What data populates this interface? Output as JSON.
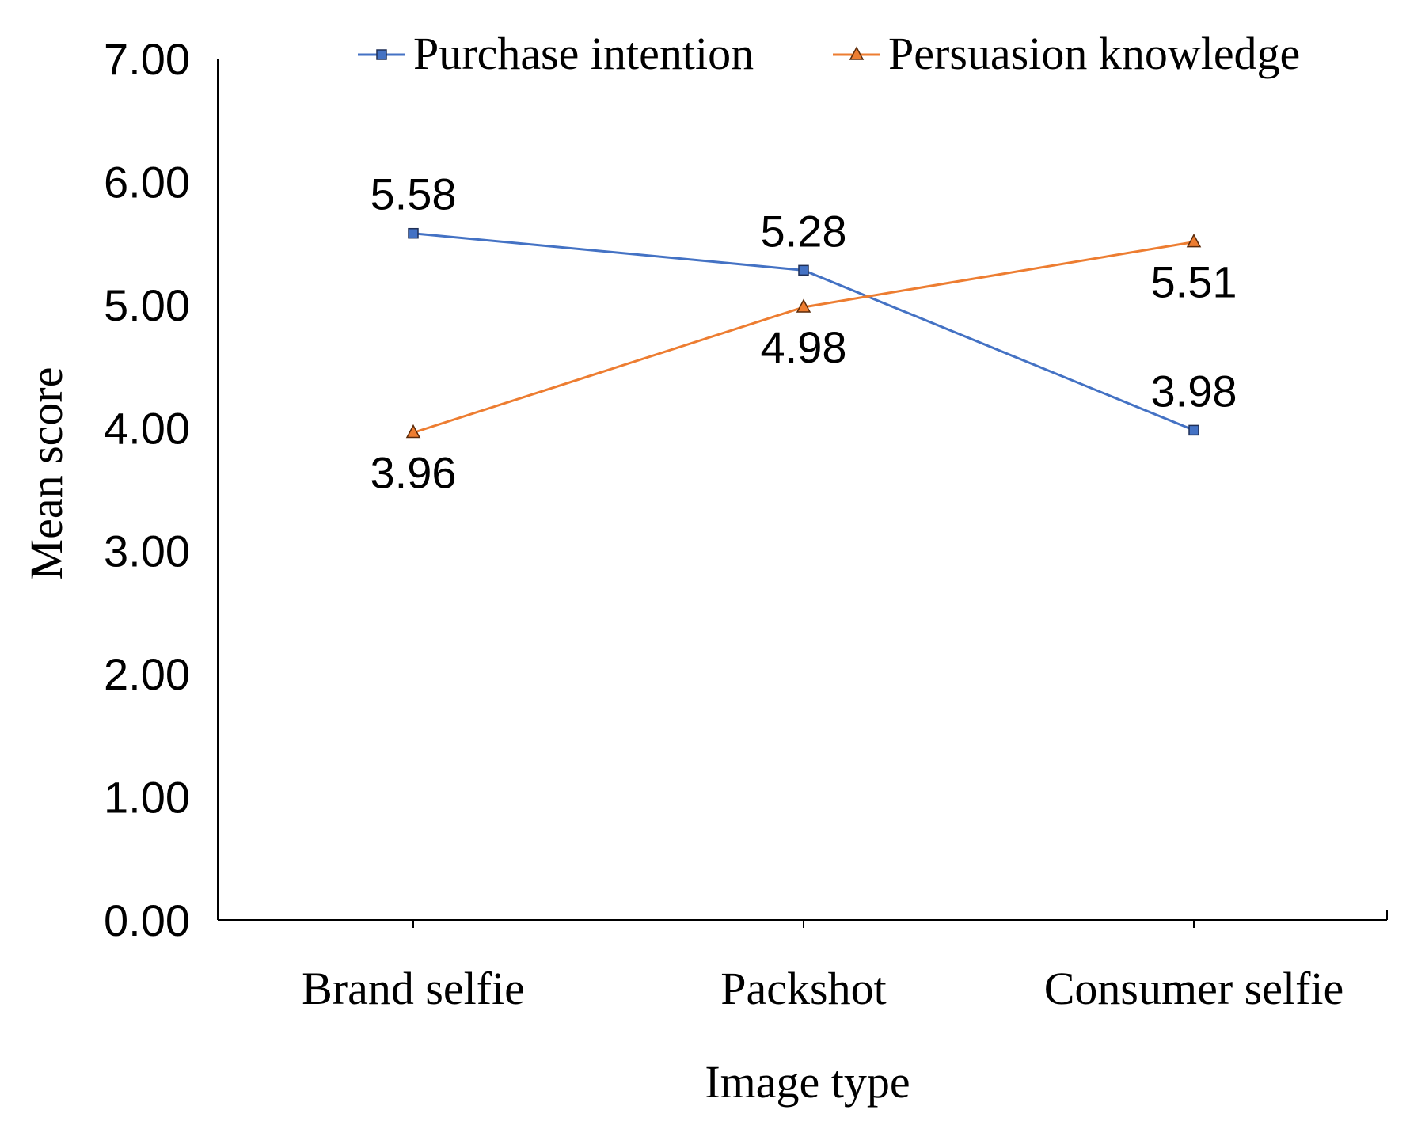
{
  "chart_data": {
    "type": "line",
    "categories": [
      "Brand selfie",
      "Packshot",
      "Consumer selfie"
    ],
    "series": [
      {
        "name": "Purchase intention",
        "values": [
          5.58,
          5.28,
          3.98
        ],
        "color": "#4472C4",
        "marker": "square"
      },
      {
        "name": "Persuasion knowledge",
        "values": [
          3.96,
          4.98,
          5.51
        ],
        "color": "#ED7D31",
        "marker": "triangle"
      }
    ],
    "data_labels": [
      {
        "series": 0,
        "values": [
          "5.58",
          "5.28",
          "3.98"
        ],
        "positions": [
          "above",
          "above",
          "above"
        ]
      },
      {
        "series": 1,
        "values": [
          "3.96",
          "4.98",
          "5.51"
        ],
        "positions": [
          "below",
          "below",
          "below"
        ]
      }
    ],
    "y_ticks": [
      "0.00",
      "1.00",
      "2.00",
      "3.00",
      "4.00",
      "5.00",
      "6.00",
      "7.00"
    ],
    "ylim": [
      0,
      7
    ],
    "xlabel": "Image type",
    "ylabel": "Mean score",
    "legend_position": "top-right",
    "grid": false
  }
}
